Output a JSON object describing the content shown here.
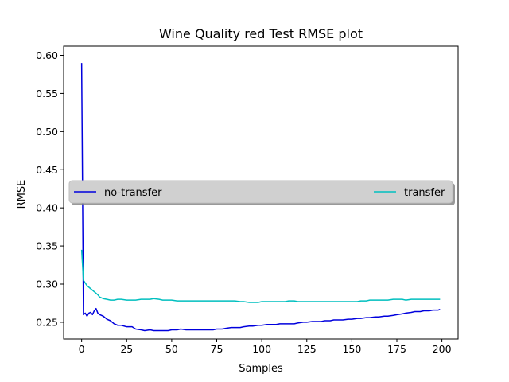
{
  "chart_data": {
    "type": "line",
    "title": "Wine Quality red Test RMSE plot",
    "xlabel": "Samples",
    "ylabel": "RMSE",
    "xlim": [
      -10,
      209
    ],
    "ylim": [
      0.228,
      0.612
    ],
    "xticks": [
      0,
      25,
      50,
      75,
      100,
      125,
      150,
      175,
      200
    ],
    "yticks": [
      0.25,
      0.3,
      0.35,
      0.4,
      0.45,
      0.5,
      0.55,
      0.6
    ],
    "ytick_labels": [
      "0.25",
      "0.30",
      "0.35",
      "0.40",
      "0.45",
      "0.50",
      "0.55",
      "0.60"
    ],
    "grid": false,
    "legend": {
      "placement": "center",
      "entries": [
        "no-transfer",
        "transfer"
      ]
    },
    "series": [
      {
        "name": "no-transfer",
        "color": "#0000dd",
        "points": [
          [
            0,
            0.59
          ],
          [
            1,
            0.26
          ],
          [
            2,
            0.262
          ],
          [
            3,
            0.258
          ],
          [
            4,
            0.262
          ],
          [
            5,
            0.263
          ],
          [
            6,
            0.26
          ],
          [
            7,
            0.265
          ],
          [
            8,
            0.268
          ],
          [
            9,
            0.262
          ],
          [
            10,
            0.26
          ],
          [
            12,
            0.258
          ],
          [
            14,
            0.254
          ],
          [
            16,
            0.252
          ],
          [
            18,
            0.248
          ],
          [
            20,
            0.246
          ],
          [
            22,
            0.246
          ],
          [
            25,
            0.244
          ],
          [
            28,
            0.244
          ],
          [
            30,
            0.241
          ],
          [
            33,
            0.24
          ],
          [
            35,
            0.239
          ],
          [
            38,
            0.24
          ],
          [
            40,
            0.239
          ],
          [
            43,
            0.239
          ],
          [
            45,
            0.239
          ],
          [
            48,
            0.239
          ],
          [
            50,
            0.24
          ],
          [
            53,
            0.24
          ],
          [
            55,
            0.241
          ],
          [
            58,
            0.24
          ],
          [
            60,
            0.24
          ],
          [
            63,
            0.24
          ],
          [
            65,
            0.24
          ],
          [
            68,
            0.24
          ],
          [
            70,
            0.24
          ],
          [
            73,
            0.24
          ],
          [
            75,
            0.241
          ],
          [
            78,
            0.241
          ],
          [
            80,
            0.242
          ],
          [
            83,
            0.243
          ],
          [
            85,
            0.243
          ],
          [
            88,
            0.243
          ],
          [
            90,
            0.244
          ],
          [
            93,
            0.245
          ],
          [
            95,
            0.245
          ],
          [
            98,
            0.246
          ],
          [
            100,
            0.246
          ],
          [
            103,
            0.247
          ],
          [
            105,
            0.247
          ],
          [
            108,
            0.247
          ],
          [
            110,
            0.248
          ],
          [
            113,
            0.248
          ],
          [
            115,
            0.248
          ],
          [
            118,
            0.248
          ],
          [
            120,
            0.249
          ],
          [
            123,
            0.25
          ],
          [
            125,
            0.25
          ],
          [
            128,
            0.251
          ],
          [
            130,
            0.251
          ],
          [
            133,
            0.251
          ],
          [
            135,
            0.252
          ],
          [
            138,
            0.252
          ],
          [
            140,
            0.253
          ],
          [
            143,
            0.253
          ],
          [
            145,
            0.253
          ],
          [
            148,
            0.254
          ],
          [
            150,
            0.254
          ],
          [
            153,
            0.255
          ],
          [
            155,
            0.255
          ],
          [
            158,
            0.256
          ],
          [
            160,
            0.256
          ],
          [
            163,
            0.257
          ],
          [
            165,
            0.257
          ],
          [
            168,
            0.258
          ],
          [
            170,
            0.258
          ],
          [
            173,
            0.259
          ],
          [
            175,
            0.26
          ],
          [
            178,
            0.261
          ],
          [
            180,
            0.262
          ],
          [
            183,
            0.263
          ],
          [
            185,
            0.264
          ],
          [
            188,
            0.264
          ],
          [
            190,
            0.265
          ],
          [
            193,
            0.265
          ],
          [
            195,
            0.266
          ],
          [
            198,
            0.266
          ],
          [
            199,
            0.267
          ]
        ]
      },
      {
        "name": "transfer",
        "color": "#00bfbf",
        "points": [
          [
            0,
            0.345
          ],
          [
            1,
            0.305
          ],
          [
            3,
            0.298
          ],
          [
            5,
            0.294
          ],
          [
            7,
            0.29
          ],
          [
            9,
            0.286
          ],
          [
            10,
            0.283
          ],
          [
            12,
            0.281
          ],
          [
            14,
            0.28
          ],
          [
            16,
            0.279
          ],
          [
            18,
            0.279
          ],
          [
            20,
            0.28
          ],
          [
            22,
            0.28
          ],
          [
            25,
            0.279
          ],
          [
            28,
            0.279
          ],
          [
            30,
            0.279
          ],
          [
            33,
            0.28
          ],
          [
            35,
            0.28
          ],
          [
            38,
            0.28
          ],
          [
            40,
            0.281
          ],
          [
            43,
            0.28
          ],
          [
            45,
            0.279
          ],
          [
            48,
            0.279
          ],
          [
            50,
            0.279
          ],
          [
            53,
            0.278
          ],
          [
            55,
            0.278
          ],
          [
            58,
            0.278
          ],
          [
            60,
            0.278
          ],
          [
            63,
            0.278
          ],
          [
            65,
            0.278
          ],
          [
            68,
            0.278
          ],
          [
            70,
            0.278
          ],
          [
            73,
            0.278
          ],
          [
            75,
            0.278
          ],
          [
            78,
            0.278
          ],
          [
            80,
            0.278
          ],
          [
            83,
            0.278
          ],
          [
            85,
            0.278
          ],
          [
            88,
            0.277
          ],
          [
            90,
            0.277
          ],
          [
            93,
            0.276
          ],
          [
            95,
            0.276
          ],
          [
            98,
            0.276
          ],
          [
            100,
            0.277
          ],
          [
            103,
            0.277
          ],
          [
            105,
            0.277
          ],
          [
            108,
            0.277
          ],
          [
            110,
            0.277
          ],
          [
            113,
            0.277
          ],
          [
            115,
            0.278
          ],
          [
            118,
            0.278
          ],
          [
            120,
            0.277
          ],
          [
            123,
            0.277
          ],
          [
            125,
            0.277
          ],
          [
            128,
            0.277
          ],
          [
            130,
            0.277
          ],
          [
            133,
            0.277
          ],
          [
            135,
            0.277
          ],
          [
            138,
            0.277
          ],
          [
            140,
            0.277
          ],
          [
            143,
            0.277
          ],
          [
            145,
            0.277
          ],
          [
            148,
            0.277
          ],
          [
            150,
            0.277
          ],
          [
            153,
            0.277
          ],
          [
            155,
            0.278
          ],
          [
            158,
            0.278
          ],
          [
            160,
            0.279
          ],
          [
            163,
            0.279
          ],
          [
            165,
            0.279
          ],
          [
            168,
            0.279
          ],
          [
            170,
            0.279
          ],
          [
            173,
            0.28
          ],
          [
            175,
            0.28
          ],
          [
            178,
            0.28
          ],
          [
            180,
            0.279
          ],
          [
            183,
            0.28
          ],
          [
            185,
            0.28
          ],
          [
            188,
            0.28
          ],
          [
            190,
            0.28
          ],
          [
            193,
            0.28
          ],
          [
            195,
            0.28
          ],
          [
            198,
            0.28
          ],
          [
            199,
            0.28
          ]
        ]
      }
    ]
  }
}
